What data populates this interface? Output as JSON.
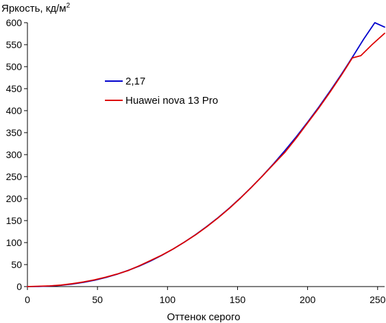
{
  "chart_data": {
    "type": "line",
    "title": "",
    "ylabel": "Яркость, кд/м",
    "ylabel_sup": "2",
    "xlabel": "Оттенок серого",
    "xlim": [
      0,
      255
    ],
    "ylim": [
      0,
      600
    ],
    "xticks": [
      0,
      50,
      100,
      150,
      200,
      250
    ],
    "yticks": [
      0,
      50,
      100,
      150,
      200,
      250,
      300,
      350,
      400,
      450,
      500,
      550,
      600
    ],
    "grid": false,
    "legend_position": "upper-left-inside",
    "series": [
      {
        "name": "2,17",
        "color": "#0000cc",
        "x": [
          0,
          8,
          16,
          24,
          32,
          40,
          48,
          56,
          64,
          72,
          80,
          88,
          96,
          104,
          112,
          120,
          128,
          136,
          144,
          152,
          160,
          168,
          176,
          184,
          192,
          200,
          208,
          216,
          224,
          232,
          240,
          248,
          255
        ],
        "y": [
          0,
          0.2,
          1.2,
          2.9,
          5.6,
          9.5,
          14.5,
          20.7,
          28.2,
          36.9,
          46.9,
          58.3,
          71.1,
          85.3,
          100.9,
          117.9,
          136.5,
          156.6,
          178.2,
          201.4,
          226.1,
          252.4,
          280.3,
          309.8,
          340.9,
          373.7,
          408.1,
          444.2,
          482.0,
          521.4,
          562.5,
          605.4,
          590
        ]
      },
      {
        "name": "Huawei nova 13 Pro",
        "color": "#dd0000",
        "x": [
          0,
          16,
          24,
          32,
          40,
          48,
          56,
          64,
          72,
          80,
          88,
          96,
          104,
          112,
          120,
          128,
          136,
          144,
          152,
          160,
          168,
          176,
          184,
          192,
          200,
          208,
          216,
          224,
          232,
          238,
          246,
          255
        ],
        "y": [
          0,
          1.5,
          3.5,
          6.5,
          10.5,
          15.5,
          21.5,
          28.5,
          36.5,
          47.5,
          59.5,
          71.5,
          85.5,
          101,
          117.5,
          136,
          156,
          177.5,
          201,
          226,
          252,
          279,
          306,
          338,
          372,
          406,
          442,
          480,
          520,
          525,
          550,
          576
        ]
      }
    ]
  }
}
